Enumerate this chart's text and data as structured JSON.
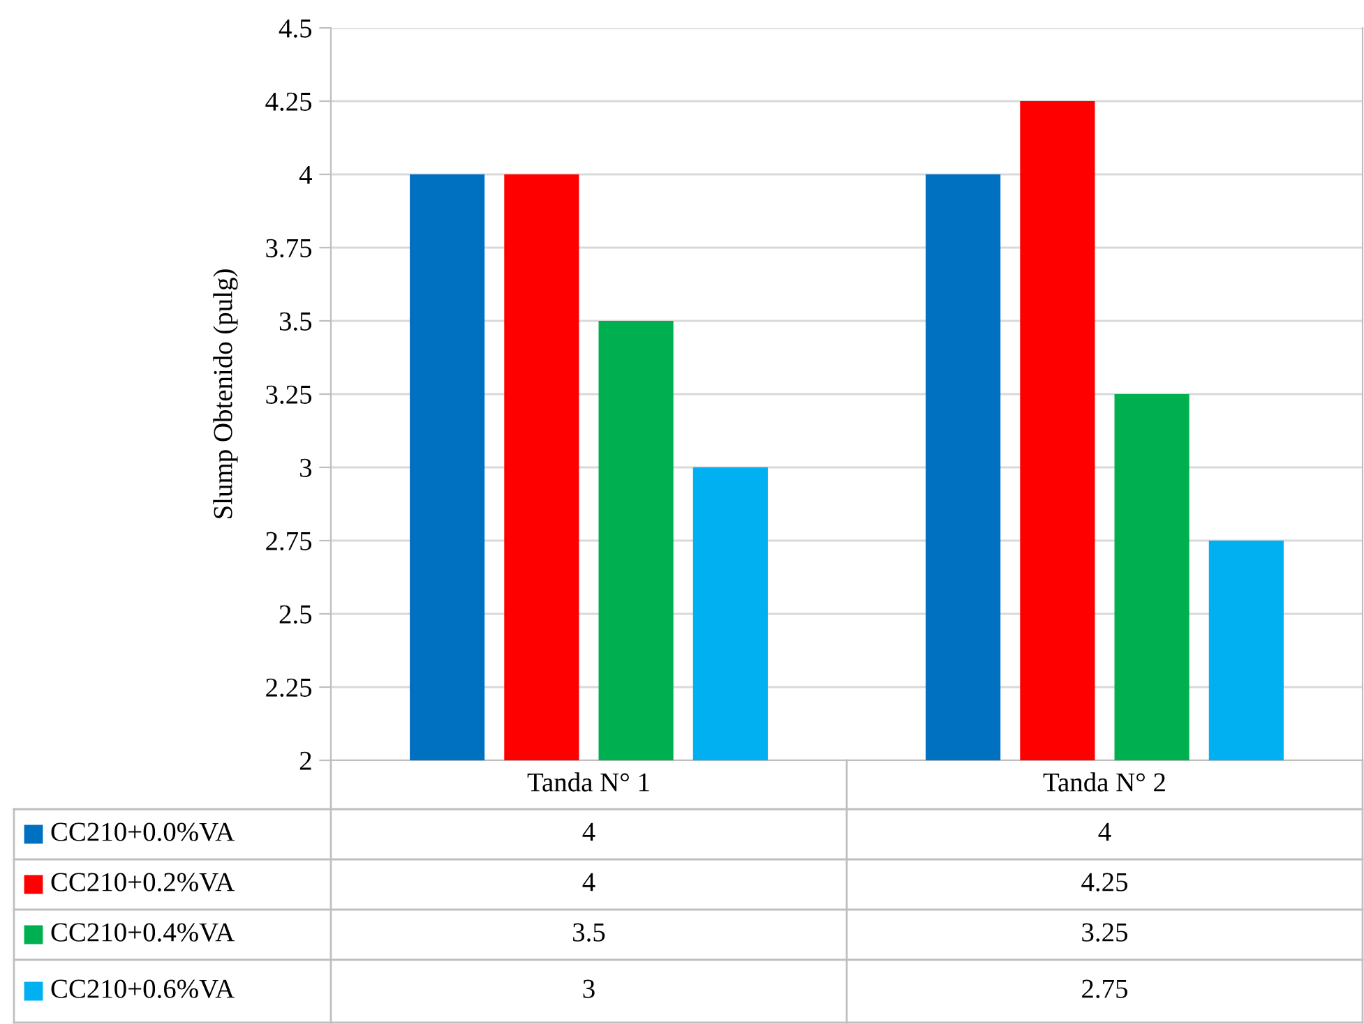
{
  "chart_data": {
    "type": "bar",
    "ylabel": "Slump Obtenido (pulg)",
    "categories": [
      "Tanda N° 1",
      "Tanda N° 2"
    ],
    "series": [
      {
        "name": "CC210+0.0%VA",
        "color": "#0070c0",
        "values": [
          4,
          4
        ]
      },
      {
        "name": "CC210+0.2%VA",
        "color": "#ff0000",
        "values": [
          4,
          4.25
        ]
      },
      {
        "name": "CC210+0.4%VA",
        "color": "#00b050",
        "values": [
          3.5,
          3.25
        ]
      },
      {
        "name": "CC210+0.6%VA",
        "color": "#00b0f0",
        "values": [
          3,
          2.75
        ]
      }
    ],
    "ylim": [
      2,
      4.5
    ],
    "yticks": [
      2,
      2.25,
      2.5,
      2.75,
      3,
      3.25,
      3.5,
      3.75,
      4,
      4.25,
      4.5
    ],
    "grid": "y",
    "legend": "bottom",
    "data_labels": true
  }
}
